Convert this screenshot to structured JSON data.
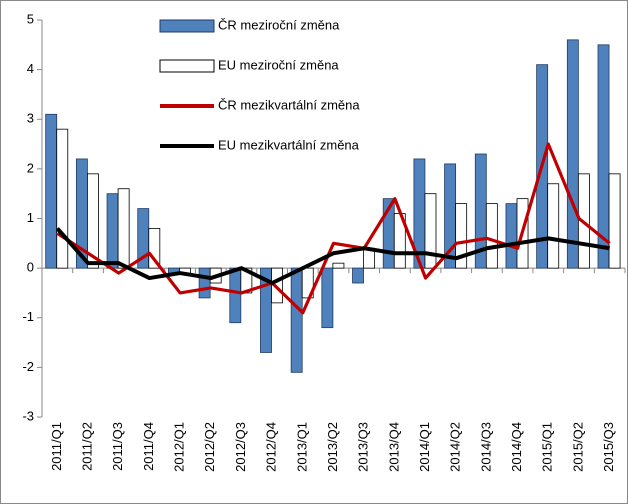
{
  "chart_data": {
    "type": "bar",
    "categories": [
      "2011/Q1",
      "2011/Q2",
      "2011/Q3",
      "2011/Q4",
      "2012/Q1",
      "2012/Q2",
      "2012/Q3",
      "2012/Q4",
      "2013/Q1",
      "2013/Q2",
      "2013/Q3",
      "2013/Q4",
      "2014/Q1",
      "2014/Q2",
      "2014/Q3",
      "2014/Q4",
      "2015/Q1",
      "2015/Q2",
      "2015/Q3"
    ],
    "series": [
      {
        "name": "ČR meziroční změna",
        "type": "bar",
        "color": "#4f81bd",
        "values": [
          3.1,
          2.2,
          1.5,
          1.2,
          -0.1,
          -0.6,
          -1.1,
          -1.7,
          -2.1,
          -1.2,
          -0.3,
          1.4,
          2.2,
          2.1,
          2.3,
          1.3,
          4.1,
          4.6,
          4.5
        ]
      },
      {
        "name": "EU meziroční změna",
        "type": "bar",
        "color": "#ffffff",
        "values": [
          2.8,
          1.9,
          1.6,
          0.8,
          -0.1,
          -0.3,
          -0.5,
          -0.7,
          -0.6,
          0.1,
          0.4,
          1.1,
          1.5,
          1.3,
          1.3,
          1.4,
          1.7,
          1.9,
          1.9
        ]
      },
      {
        "name": "ČR mezikvartální změna",
        "type": "line",
        "color": "#c00000",
        "values": [
          0.7,
          0.3,
          -0.1,
          0.3,
          -0.5,
          -0.4,
          -0.5,
          -0.3,
          -0.9,
          0.5,
          0.4,
          1.4,
          -0.2,
          0.5,
          0.6,
          0.4,
          2.5,
          1.0,
          0.5
        ]
      },
      {
        "name": "EU mezikvartální změna",
        "type": "line",
        "color": "#000000",
        "values": [
          0.8,
          0.1,
          0.1,
          -0.2,
          -0.1,
          -0.2,
          0.0,
          -0.3,
          0.0,
          0.3,
          0.4,
          0.3,
          0.3,
          0.2,
          0.4,
          0.5,
          0.6,
          0.5,
          0.4
        ]
      }
    ],
    "ylim": [
      -3,
      5
    ],
    "yticks": [
      -3,
      -2,
      -1,
      0,
      1,
      2,
      3,
      4,
      5
    ]
  }
}
